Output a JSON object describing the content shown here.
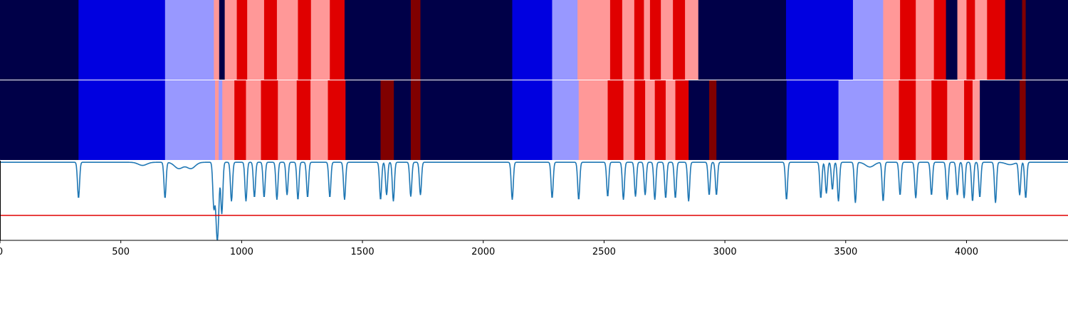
{
  "chart_data": {
    "type": "heatmap",
    "title": "",
    "xlabel": "",
    "ylabel": "",
    "xlim": [
      0,
      4420
    ],
    "xticks": [
      0,
      500,
      1000,
      1500,
      2000,
      2500,
      3000,
      3500,
      4000
    ],
    "xtick_labels": [
      "0",
      "500",
      "1000",
      "1500",
      "2000",
      "2500",
      "3000",
      "3500",
      "4000"
    ],
    "colors": {
      "0": "#000048",
      "1": "#0000e0",
      "2": "#9898ff",
      "3": "#ff9898",
      "4": "#e00000",
      "5": "#800000",
      "line": "#1f77b4",
      "threshold": "#e00000"
    },
    "heatmap_rows": [
      {
        "segments": [
          [
            0,
            325,
            0
          ],
          [
            325,
            683,
            1
          ],
          [
            683,
            885,
            2
          ],
          [
            885,
            907,
            3
          ],
          [
            907,
            930,
            0
          ],
          [
            930,
            980,
            3
          ],
          [
            980,
            1023,
            4
          ],
          [
            1023,
            1093,
            3
          ],
          [
            1093,
            1146,
            4
          ],
          [
            1146,
            1233,
            3
          ],
          [
            1233,
            1287,
            4
          ],
          [
            1287,
            1365,
            3
          ],
          [
            1365,
            1426,
            4
          ],
          [
            1426,
            1700,
            0
          ],
          [
            1700,
            1740,
            5
          ],
          [
            1740,
            2120,
            0
          ],
          [
            2120,
            2285,
            1
          ],
          [
            2285,
            2390,
            2
          ],
          [
            2390,
            2525,
            3
          ],
          [
            2525,
            2575,
            4
          ],
          [
            2575,
            2625,
            3
          ],
          [
            2625,
            2665,
            4
          ],
          [
            2665,
            2690,
            3
          ],
          [
            2690,
            2735,
            4
          ],
          [
            2735,
            2785,
            3
          ],
          [
            2785,
            2835,
            4
          ],
          [
            2835,
            2890,
            3
          ],
          [
            2890,
            3253,
            0
          ],
          [
            3253,
            3530,
            1
          ],
          [
            3530,
            3655,
            2
          ],
          [
            3655,
            3725,
            3
          ],
          [
            3725,
            3790,
            4
          ],
          [
            3790,
            3865,
            3
          ],
          [
            3865,
            3915,
            4
          ],
          [
            3915,
            3948,
            0
          ],
          [
            3948,
            3962,
            0
          ],
          [
            3962,
            4000,
            3
          ],
          [
            4000,
            4035,
            4
          ],
          [
            4035,
            4085,
            3
          ],
          [
            4085,
            4160,
            4
          ],
          [
            4160,
            4230,
            0
          ],
          [
            4230,
            4245,
            5
          ],
          [
            4245,
            4420,
            0
          ]
        ]
      },
      {
        "segments": [
          [
            0,
            325,
            0
          ],
          [
            325,
            683,
            1
          ],
          [
            683,
            890,
            2
          ],
          [
            890,
            905,
            3
          ],
          [
            905,
            920,
            2
          ],
          [
            920,
            970,
            3
          ],
          [
            970,
            1018,
            4
          ],
          [
            1018,
            1080,
            3
          ],
          [
            1080,
            1150,
            4
          ],
          [
            1150,
            1228,
            3
          ],
          [
            1228,
            1285,
            4
          ],
          [
            1285,
            1357,
            3
          ],
          [
            1357,
            1430,
            4
          ],
          [
            1430,
            1575,
            0
          ],
          [
            1575,
            1630,
            5
          ],
          [
            1630,
            1700,
            0
          ],
          [
            1700,
            1740,
            5
          ],
          [
            1740,
            2120,
            0
          ],
          [
            2120,
            2285,
            1
          ],
          [
            2285,
            2395,
            2
          ],
          [
            2395,
            2515,
            3
          ],
          [
            2515,
            2580,
            4
          ],
          [
            2580,
            2625,
            3
          ],
          [
            2625,
            2670,
            4
          ],
          [
            2670,
            2710,
            3
          ],
          [
            2710,
            2755,
            4
          ],
          [
            2755,
            2795,
            3
          ],
          [
            2795,
            2850,
            4
          ],
          [
            2850,
            2935,
            0
          ],
          [
            2935,
            2965,
            5
          ],
          [
            2965,
            3255,
            0
          ],
          [
            3255,
            3470,
            1
          ],
          [
            3470,
            3655,
            2
          ],
          [
            3655,
            3720,
            3
          ],
          [
            3720,
            3790,
            4
          ],
          [
            3790,
            3855,
            3
          ],
          [
            3855,
            3920,
            4
          ],
          [
            3920,
            3990,
            3
          ],
          [
            3990,
            4025,
            4
          ],
          [
            4025,
            4055,
            3
          ],
          [
            4055,
            4220,
            0
          ],
          [
            4220,
            4245,
            5
          ],
          [
            4245,
            4420,
            0
          ]
        ]
      }
    ],
    "line_series": {
      "ylim": [
        -1.0,
        0.02
      ],
      "baseline": 0.0,
      "threshold": -0.68,
      "dips": [
        [
          325,
          -0.46
        ],
        [
          683,
          -0.46
        ],
        [
          885,
          -0.58
        ],
        [
          895,
          -0.45
        ],
        [
          900,
          -0.6
        ],
        [
          905,
          -0.35
        ],
        [
          918,
          -0.66
        ],
        [
          958,
          -0.5
        ],
        [
          1018,
          -0.5
        ],
        [
          1053,
          -0.45
        ],
        [
          1093,
          -0.45
        ],
        [
          1146,
          -0.48
        ],
        [
          1188,
          -0.42
        ],
        [
          1233,
          -0.48
        ],
        [
          1273,
          -0.45
        ],
        [
          1365,
          -0.45
        ],
        [
          1426,
          -0.48
        ],
        [
          1575,
          -0.48
        ],
        [
          1600,
          -0.42
        ],
        [
          1628,
          -0.5
        ],
        [
          1700,
          -0.44
        ],
        [
          1740,
          -0.42
        ],
        [
          2120,
          -0.48
        ],
        [
          2285,
          -0.46
        ],
        [
          2395,
          -0.48
        ],
        [
          2515,
          -0.44
        ],
        [
          2580,
          -0.48
        ],
        [
          2630,
          -0.44
        ],
        [
          2670,
          -0.42
        ],
        [
          2710,
          -0.48
        ],
        [
          2755,
          -0.46
        ],
        [
          2795,
          -0.46
        ],
        [
          2850,
          -0.5
        ],
        [
          2935,
          -0.42
        ],
        [
          2965,
          -0.42
        ],
        [
          3255,
          -0.48
        ],
        [
          3397,
          -0.46
        ],
        [
          3420,
          -0.4
        ],
        [
          3445,
          -0.35
        ],
        [
          3470,
          -0.5
        ],
        [
          3540,
          -0.52
        ],
        [
          3655,
          -0.5
        ],
        [
          3725,
          -0.42
        ],
        [
          3790,
          -0.46
        ],
        [
          3855,
          -0.42
        ],
        [
          3920,
          -0.48
        ],
        [
          3962,
          -0.42
        ],
        [
          3990,
          -0.46
        ],
        [
          4025,
          -0.5
        ],
        [
          4055,
          -0.45
        ],
        [
          4120,
          -0.52
        ],
        [
          4220,
          -0.42
        ],
        [
          4245,
          -0.46
        ]
      ],
      "bumps": [
        [
          590,
          -0.04
        ],
        [
          740,
          -0.08
        ],
        [
          790,
          -0.08
        ],
        [
          3600,
          -0.06
        ],
        [
          4180,
          -0.03
        ]
      ]
    }
  }
}
